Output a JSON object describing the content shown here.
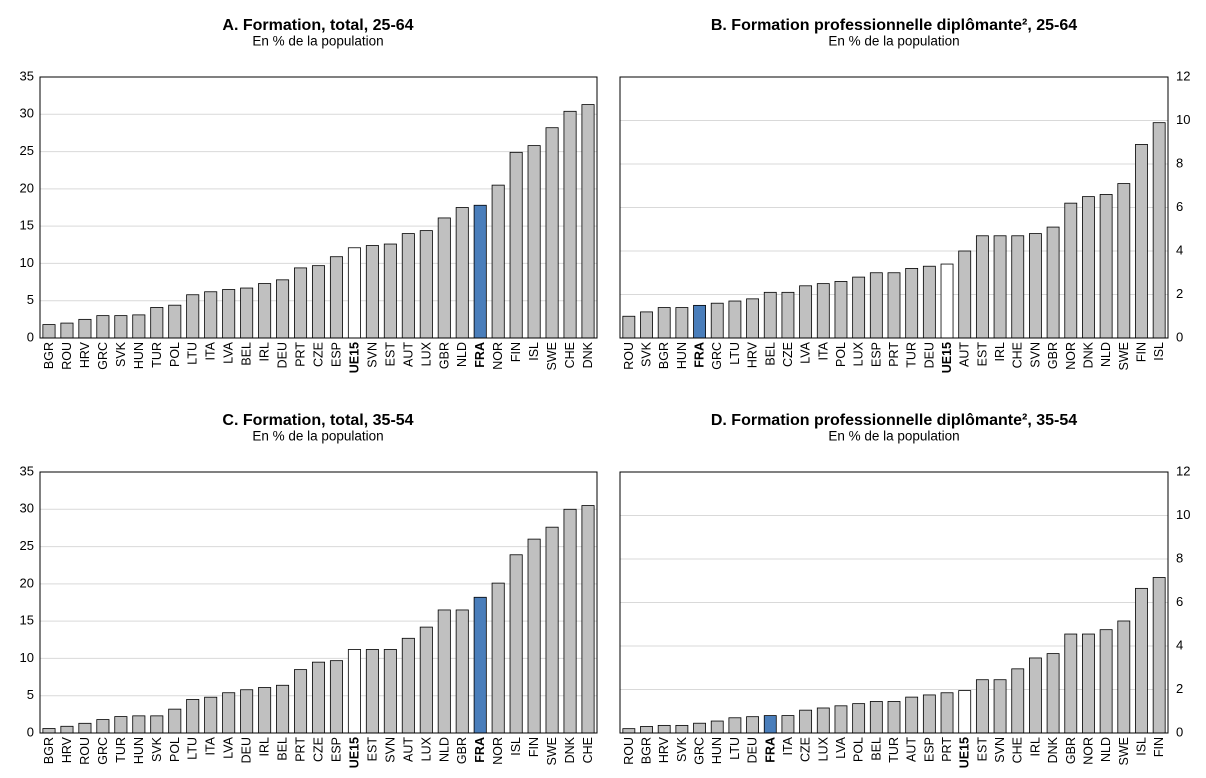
{
  "chart_data": [
    {
      "type": "bar",
      "title": "A. Formation, total, 25-64",
      "subtitle": "En % de la population",
      "categories": [
        "BGR",
        "ROU",
        "HRV",
        "GRC",
        "SVK",
        "HUN",
        "TUR",
        "POL",
        "LTU",
        "ITA",
        "LVA",
        "BEL",
        "IRL",
        "DEU",
        "PRT",
        "CZE",
        "ESP",
        "UE15",
        "SVN",
        "EST",
        "AUT",
        "LUX",
        "GBR",
        "NLD",
        "FRA",
        "NOR",
        "FIN",
        "ISL",
        "SWE",
        "CHE",
        "DNK"
      ],
      "values": [
        1.8,
        2.0,
        2.5,
        3.0,
        3.0,
        3.1,
        4.1,
        4.4,
        5.8,
        6.2,
        6.5,
        6.7,
        7.3,
        7.8,
        9.4,
        9.7,
        10.9,
        12.1,
        12.4,
        12.6,
        14.0,
        14.4,
        16.1,
        17.5,
        17.8,
        20.5,
        24.9,
        25.8,
        28.2,
        30.4,
        31.3
      ],
      "color": "#c0c0c0",
      "highlight_colors": {
        "FRA": "#4a7ebb",
        "UE15": "#ffffff"
      },
      "ylim": [
        0,
        35
      ],
      "yticks": [
        0,
        5,
        10,
        15,
        20,
        25,
        30,
        35
      ],
      "y_axis_side": "left",
      "grid": true
    },
    {
      "type": "bar",
      "title": "B. Formation professionnelle diplômante², 25-64",
      "subtitle": "En % de la population",
      "categories": [
        "ROU",
        "SVK",
        "BGR",
        "HUN",
        "FRA",
        "GRC",
        "LTU",
        "HRV",
        "BEL",
        "CZE",
        "LVA",
        "ITA",
        "POL",
        "LUX",
        "ESP",
        "PRT",
        "TUR",
        "DEU",
        "UE15",
        "AUT",
        "EST",
        "IRL",
        "CHE",
        "SVN",
        "GBR",
        "NOR",
        "DNK",
        "NLD",
        "SWE",
        "FIN",
        "ISL"
      ],
      "values": [
        1.0,
        1.2,
        1.4,
        1.4,
        1.5,
        1.6,
        1.7,
        1.8,
        2.1,
        2.1,
        2.4,
        2.5,
        2.6,
        2.8,
        3.0,
        3.0,
        3.2,
        3.3,
        3.4,
        4.0,
        4.7,
        4.7,
        4.7,
        4.8,
        5.1,
        6.2,
        6.5,
        6.6,
        7.1,
        8.9,
        9.9
      ],
      "color": "#c0c0c0",
      "highlight_colors": {
        "FRA": "#4a7ebb",
        "UE15": "#ffffff"
      },
      "ylim": [
        0,
        12
      ],
      "yticks": [
        0,
        2,
        4,
        6,
        8,
        10,
        12
      ],
      "y_axis_side": "right",
      "grid": true
    },
    {
      "type": "bar",
      "title": "C. Formation, total, 35-54",
      "subtitle": "En % de la population",
      "categories": [
        "BGR",
        "HRV",
        "ROU",
        "GRC",
        "TUR",
        "HUN",
        "SVK",
        "POL",
        "LTU",
        "ITA",
        "LVA",
        "DEU",
        "IRL",
        "BEL",
        "PRT",
        "CZE",
        "ESP",
        "UE15",
        "EST",
        "SVN",
        "AUT",
        "LUX",
        "NLD",
        "GBR",
        "FRA",
        "NOR",
        "ISL",
        "FIN",
        "SWE",
        "DNK",
        "CHE"
      ],
      "values": [
        0.6,
        0.9,
        1.3,
        1.8,
        2.2,
        2.3,
        2.3,
        3.2,
        4.5,
        4.8,
        5.4,
        5.8,
        6.1,
        6.4,
        8.5,
        9.5,
        9.7,
        11.2,
        11.2,
        11.2,
        12.7,
        14.2,
        16.5,
        16.5,
        18.2,
        20.1,
        23.9,
        26.0,
        27.6,
        30.0,
        30.5
      ],
      "color": "#c0c0c0",
      "highlight_colors": {
        "FRA": "#4a7ebb",
        "UE15": "#ffffff"
      },
      "ylim": [
        0,
        35
      ],
      "yticks": [
        0,
        5,
        10,
        15,
        20,
        25,
        30,
        35
      ],
      "y_axis_side": "left",
      "grid": true
    },
    {
      "type": "bar",
      "title": "D. Formation professionnelle diplômante², 35-54",
      "subtitle": "En % de la population",
      "categories": [
        "ROU",
        "BGR",
        "HRV",
        "SVK",
        "GRC",
        "HUN",
        "LTU",
        "DEU",
        "FRA",
        "ITA",
        "CZE",
        "LUX",
        "LVA",
        "POL",
        "BEL",
        "TUR",
        "AUT",
        "ESP",
        "PRT",
        "UE15",
        "EST",
        "SVN",
        "CHE",
        "IRL",
        "DNK",
        "GBR",
        "NOR",
        "NLD",
        "SWE",
        "ISL",
        "FIN"
      ],
      "values": [
        0.2,
        0.3,
        0.35,
        0.35,
        0.45,
        0.55,
        0.7,
        0.75,
        0.8,
        0.8,
        1.05,
        1.15,
        1.25,
        1.35,
        1.45,
        1.45,
        1.65,
        1.75,
        1.85,
        1.95,
        2.45,
        2.45,
        2.95,
        3.45,
        3.65,
        4.55,
        4.55,
        4.75,
        5.15,
        6.65,
        7.15
      ],
      "color": "#c0c0c0",
      "highlight_colors": {
        "FRA": "#4a7ebb",
        "UE15": "#ffffff"
      },
      "ylim": [
        0,
        12
      ],
      "yticks": [
        0,
        2,
        4,
        6,
        8,
        10,
        12
      ],
      "y_axis_side": "right",
      "grid": true
    }
  ]
}
